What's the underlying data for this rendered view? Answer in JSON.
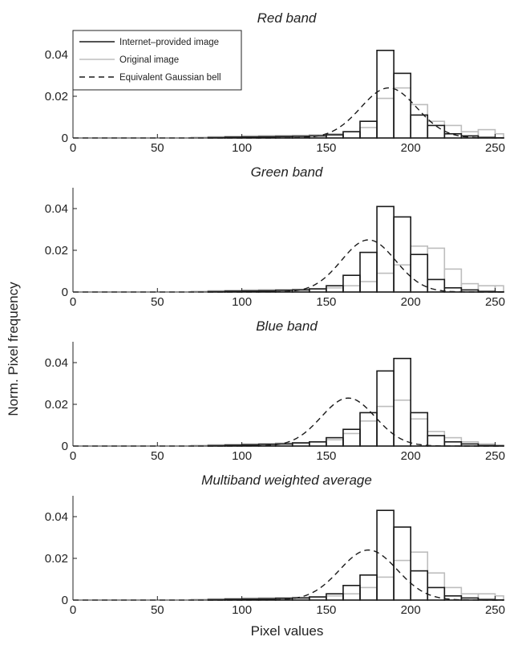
{
  "figure": {
    "ylabel": "Norm. Pixel frequency",
    "xlabel": "Pixel values"
  },
  "legend": {
    "placement": "top-left of first panel",
    "entries": [
      {
        "label": "Internet–provided image",
        "color": "#1a1a1a",
        "style": "solid"
      },
      {
        "label": "Original image",
        "color": "#bdbdbd",
        "style": "solid"
      },
      {
        "label": "Equivalent Gaussian bell",
        "color": "#1a1a1a",
        "style": "dashed"
      }
    ]
  },
  "colors": {
    "internet": "#1a1a1a",
    "original": "#bdbdbd",
    "gaussian": "#1a1a1a"
  },
  "chart_data": [
    {
      "type": "bar",
      "title": "Red band",
      "xlim": [
        0,
        255
      ],
      "ylim": [
        0,
        0.05
      ],
      "xticks": [
        0,
        50,
        100,
        150,
        200,
        250
      ],
      "yticks": [
        0,
        0.02,
        0.04
      ],
      "bin_width": 10,
      "series": [
        {
          "name": "Internet–provided image",
          "bin_starts": [
            0,
            10,
            20,
            30,
            40,
            50,
            60,
            70,
            80,
            90,
            100,
            110,
            120,
            130,
            140,
            150,
            160,
            170,
            180,
            190,
            200,
            210,
            220,
            230,
            240,
            250
          ],
          "values": [
            0,
            0,
            0,
            0,
            0,
            0,
            0,
            0,
            0.0002,
            0.0004,
            0.0005,
            0.0006,
            0.0007,
            0.0008,
            0.001,
            0.0015,
            0.003,
            0.008,
            0.042,
            0.031,
            0.011,
            0.006,
            0.002,
            0.001,
            0.0003,
            0.0001
          ]
        },
        {
          "name": "Original image",
          "bin_starts": [
            0,
            10,
            20,
            30,
            40,
            50,
            60,
            70,
            80,
            90,
            100,
            110,
            120,
            130,
            140,
            150,
            160,
            170,
            180,
            190,
            200,
            210,
            220,
            230,
            240,
            250
          ],
          "values": [
            0,
            0,
            0,
            0,
            0,
            0,
            0,
            0.0003,
            0.0006,
            0.0008,
            0.001,
            0.0011,
            0.0012,
            0.0013,
            0.0015,
            0.002,
            0.003,
            0.005,
            0.019,
            0.024,
            0.016,
            0.008,
            0.006,
            0.003,
            0.004,
            0.002
          ]
        },
        {
          "name": "Equivalent Gaussian bell",
          "mean": 187,
          "peak": 0.024,
          "sigma": 16.6
        }
      ]
    },
    {
      "type": "bar",
      "title": "Green band",
      "xlim": [
        0,
        255
      ],
      "ylim": [
        0,
        0.05
      ],
      "xticks": [
        0,
        50,
        100,
        150,
        200,
        250
      ],
      "yticks": [
        0,
        0.02,
        0.04
      ],
      "bin_width": 10,
      "series": [
        {
          "name": "Internet–provided image",
          "bin_starts": [
            0,
            10,
            20,
            30,
            40,
            50,
            60,
            70,
            80,
            90,
            100,
            110,
            120,
            130,
            140,
            150,
            160,
            170,
            180,
            190,
            200,
            210,
            220,
            230,
            240,
            250
          ],
          "values": [
            0,
            0,
            0,
            0,
            0,
            0,
            0,
            0,
            0.0002,
            0.0004,
            0.0005,
            0.0006,
            0.0008,
            0.001,
            0.0015,
            0.003,
            0.008,
            0.019,
            0.041,
            0.036,
            0.018,
            0.006,
            0.002,
            0.001,
            0.0003,
            0.0001
          ]
        },
        {
          "name": "Original image",
          "bin_starts": [
            0,
            10,
            20,
            30,
            40,
            50,
            60,
            70,
            80,
            90,
            100,
            110,
            120,
            130,
            140,
            150,
            160,
            170,
            180,
            190,
            200,
            210,
            220,
            230,
            240,
            250
          ],
          "values": [
            0,
            0,
            0,
            0,
            0,
            0,
            0,
            0.0003,
            0.0006,
            0.0008,
            0.001,
            0.0011,
            0.0012,
            0.0013,
            0.0015,
            0.002,
            0.003,
            0.005,
            0.009,
            0.013,
            0.022,
            0.021,
            0.011,
            0.004,
            0.003,
            0.003
          ]
        },
        {
          "name": "Equivalent Gaussian bell",
          "mean": 175,
          "peak": 0.025,
          "sigma": 16
        }
      ]
    },
    {
      "type": "bar",
      "title": "Blue band",
      "xlim": [
        0,
        255
      ],
      "ylim": [
        0,
        0.05
      ],
      "xticks": [
        0,
        50,
        100,
        150,
        200,
        250
      ],
      "yticks": [
        0,
        0.02,
        0.04
      ],
      "bin_width": 10,
      "series": [
        {
          "name": "Internet–provided image",
          "bin_starts": [
            0,
            10,
            20,
            30,
            40,
            50,
            60,
            70,
            80,
            90,
            100,
            110,
            120,
            130,
            140,
            150,
            160,
            170,
            180,
            190,
            200,
            210,
            220,
            230,
            240,
            250
          ],
          "values": [
            0,
            0,
            0,
            0,
            0,
            0,
            0,
            0,
            0.0002,
            0.0004,
            0.0006,
            0.0008,
            0.001,
            0.0015,
            0.002,
            0.004,
            0.008,
            0.016,
            0.036,
            0.042,
            0.016,
            0.005,
            0.002,
            0.001,
            0.0003,
            0.0001
          ]
        },
        {
          "name": "Original image",
          "bin_starts": [
            0,
            10,
            20,
            30,
            40,
            50,
            60,
            70,
            80,
            90,
            100,
            110,
            120,
            130,
            140,
            150,
            160,
            170,
            180,
            190,
            200,
            210,
            220,
            230,
            240,
            250
          ],
          "values": [
            0,
            0,
            0,
            0,
            0,
            0,
            0,
            0.0003,
            0.0006,
            0.0008,
            0.001,
            0.0012,
            0.0014,
            0.0016,
            0.002,
            0.003,
            0.006,
            0.012,
            0.019,
            0.022,
            0.013,
            0.007,
            0.004,
            0.002,
            0.001,
            0.0005
          ]
        },
        {
          "name": "Equivalent Gaussian bell",
          "mean": 163,
          "peak": 0.023,
          "sigma": 16
        }
      ]
    },
    {
      "type": "bar",
      "title": "Multiband weighted average",
      "xlim": [
        0,
        255
      ],
      "ylim": [
        0,
        0.05
      ],
      "xticks": [
        0,
        50,
        100,
        150,
        200,
        250
      ],
      "yticks": [
        0,
        0.02,
        0.04
      ],
      "bin_width": 10,
      "series": [
        {
          "name": "Internet–provided image",
          "bin_starts": [
            0,
            10,
            20,
            30,
            40,
            50,
            60,
            70,
            80,
            90,
            100,
            110,
            120,
            130,
            140,
            150,
            160,
            170,
            180,
            190,
            200,
            210,
            220,
            230,
            240,
            250
          ],
          "values": [
            0,
            0,
            0,
            0,
            0,
            0,
            0,
            0,
            0.0002,
            0.0004,
            0.0005,
            0.0006,
            0.0008,
            0.001,
            0.0015,
            0.003,
            0.007,
            0.012,
            0.043,
            0.035,
            0.014,
            0.006,
            0.002,
            0.001,
            0.0003,
            0.0001
          ]
        },
        {
          "name": "Original image",
          "bin_starts": [
            0,
            10,
            20,
            30,
            40,
            50,
            60,
            70,
            80,
            90,
            100,
            110,
            120,
            130,
            140,
            150,
            160,
            170,
            180,
            190,
            200,
            210,
            220,
            230,
            240,
            250
          ],
          "values": [
            0,
            0,
            0,
            0,
            0,
            0,
            0,
            0.0003,
            0.0006,
            0.0008,
            0.001,
            0.0011,
            0.0012,
            0.0013,
            0.0015,
            0.002,
            0.003,
            0.006,
            0.011,
            0.019,
            0.023,
            0.013,
            0.006,
            0.003,
            0.003,
            0.002
          ]
        },
        {
          "name": "Equivalent Gaussian bell",
          "mean": 175,
          "peak": 0.024,
          "sigma": 17
        }
      ]
    }
  ]
}
